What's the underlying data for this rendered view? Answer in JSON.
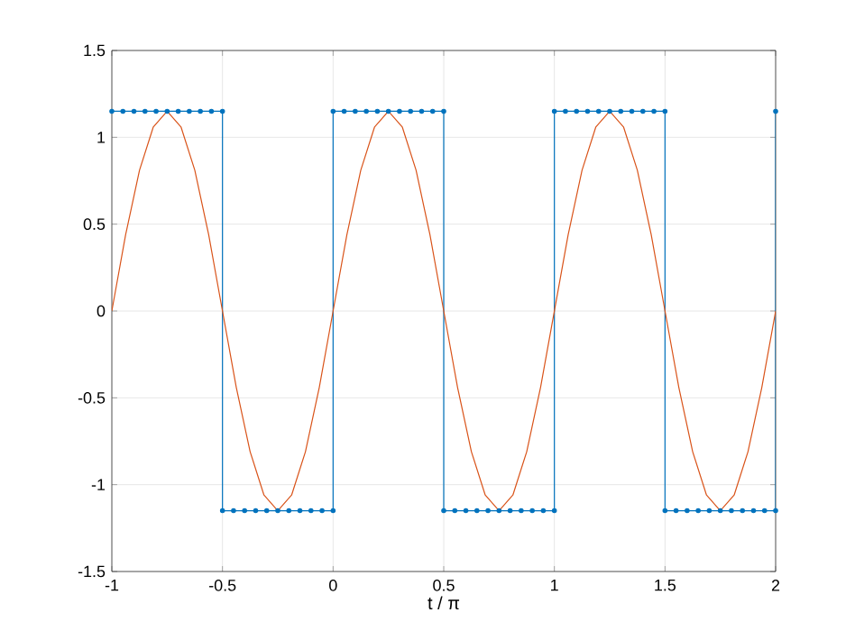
{
  "chart_data": {
    "type": "line",
    "xlabel": "t / π",
    "xlim": [
      -1,
      2
    ],
    "xticks": [
      -1,
      -0.5,
      0,
      0.5,
      1,
      1.5,
      2
    ],
    "ylim": [
      -1.5,
      1.5
    ],
    "yticks": [
      -1.5,
      -1,
      -0.5,
      0,
      0.5,
      1,
      1.5
    ],
    "grid": true,
    "series": [
      {
        "color": "#0072bd",
        "marker": "circle",
        "x": [
          -1,
          -0.95,
          -0.9,
          -0.85,
          -0.8,
          -0.75,
          -0.7,
          -0.65,
          -0.6,
          -0.55,
          -0.5,
          -0.5,
          -0.45,
          -0.4,
          -0.35,
          -0.3,
          -0.25,
          -0.2,
          -0.15,
          -0.1,
          -0.05,
          0,
          0,
          0.05,
          0.1,
          0.15,
          0.2,
          0.25,
          0.3,
          0.35,
          0.4,
          0.45,
          0.5,
          0.5,
          0.55,
          0.6,
          0.65,
          0.7,
          0.75,
          0.8,
          0.85,
          0.9,
          0.95,
          1,
          1,
          1.05,
          1.1,
          1.15,
          1.2,
          1.25,
          1.3,
          1.35,
          1.4,
          1.45,
          1.5,
          1.5,
          1.55,
          1.6,
          1.65,
          1.7,
          1.75,
          1.8,
          1.85,
          1.9,
          1.95,
          2,
          2
        ],
        "values": [
          1.15,
          1.15,
          1.15,
          1.15,
          1.15,
          1.15,
          1.15,
          1.15,
          1.15,
          1.15,
          1.15,
          -1.15,
          -1.15,
          -1.15,
          -1.15,
          -1.15,
          -1.15,
          -1.15,
          -1.15,
          -1.15,
          -1.15,
          -1.15,
          1.15,
          1.15,
          1.15,
          1.15,
          1.15,
          1.15,
          1.15,
          1.15,
          1.15,
          1.15,
          1.15,
          -1.15,
          -1.15,
          -1.15,
          -1.15,
          -1.15,
          -1.15,
          -1.15,
          -1.15,
          -1.15,
          -1.15,
          -1.15,
          1.15,
          1.15,
          1.15,
          1.15,
          1.15,
          1.15,
          1.15,
          1.15,
          1.15,
          1.15,
          1.15,
          -1.15,
          -1.15,
          -1.15,
          -1.15,
          -1.15,
          -1.15,
          -1.15,
          -1.15,
          -1.15,
          -1.15,
          -1.15,
          1.15
        ]
      },
      {
        "color": "#d95319",
        "marker": "none",
        "x": [
          -1,
          -0.9375,
          -0.875,
          -0.8125,
          -0.75,
          -0.6875,
          -0.625,
          -0.5625,
          -0.5,
          -0.4375,
          -0.375,
          -0.3125,
          -0.25,
          -0.1875,
          -0.125,
          -0.0625,
          0,
          0.0625,
          0.125,
          0.1875,
          0.25,
          0.3125,
          0.375,
          0.4375,
          0.5,
          0.5625,
          0.625,
          0.6875,
          0.75,
          0.8125,
          0.875,
          0.9375,
          1,
          1.0625,
          1.125,
          1.1875,
          1.25,
          1.3125,
          1.375,
          1.4375,
          1.5,
          1.5625,
          1.625,
          1.6875,
          1.75,
          1.8125,
          1.875,
          1.9375,
          2
        ],
        "values": [
          0,
          0.44,
          0.81,
          1.06,
          1.15,
          1.06,
          0.81,
          0.44,
          0,
          -0.44,
          -0.81,
          -1.06,
          -1.15,
          -1.06,
          -0.81,
          -0.44,
          0,
          0.44,
          0.81,
          1.06,
          1.15,
          1.06,
          0.81,
          0.44,
          0,
          -0.44,
          -0.81,
          -1.06,
          -1.15,
          -1.06,
          -0.81,
          -0.44,
          0,
          0.44,
          0.81,
          1.06,
          1.15,
          1.06,
          0.81,
          0.44,
          0,
          -0.44,
          -0.81,
          -1.06,
          -1.15,
          -1.06,
          -0.81,
          -0.44,
          0
        ]
      }
    ]
  }
}
